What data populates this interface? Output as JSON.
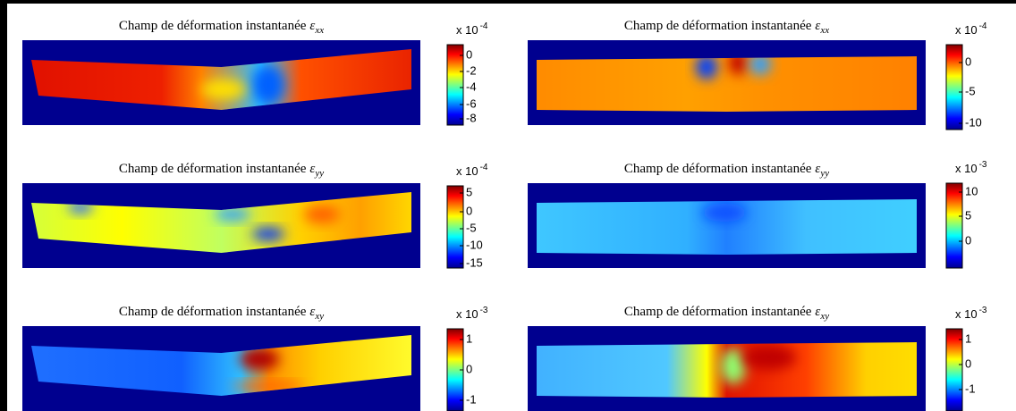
{
  "panels": [
    {
      "title": "Champ de déformation  instantanée",
      "symbol": "ε",
      "subscript": "xx",
      "scale": "x 10",
      "exponent": "-4",
      "ticks": [
        0,
        -2,
        -4,
        -6,
        -8
      ]
    },
    {
      "title": "Champ de déformation instantanée",
      "symbol": "ε",
      "subscript": "xx",
      "scale": "x 10",
      "exponent": "-4",
      "ticks": [
        0,
        -5,
        -10
      ]
    },
    {
      "title": "Champ de déformation instantanée",
      "symbol": "ε",
      "subscript": "yy",
      "scale": "x 10",
      "exponent": "-4",
      "ticks": [
        5,
        0,
        -5,
        -10,
        -15
      ]
    },
    {
      "title": "Champ de déformation instantanée",
      "symbol": "ε",
      "subscript": "yy",
      "scale": "x 10",
      "exponent": "-3",
      "ticks": [
        10,
        5,
        0
      ]
    },
    {
      "title": "Champ de déformation instantanée",
      "symbol": "ε",
      "subscript": "xy",
      "scale": "x 10",
      "exponent": "-3",
      "ticks": [
        1,
        0,
        -1
      ]
    },
    {
      "title": "Champ de déformation instantanée",
      "symbol": "ε",
      "subscript": "xy",
      "scale": "x 10",
      "exponent": "-3",
      "ticks": [
        1,
        0,
        -1
      ]
    }
  ]
}
